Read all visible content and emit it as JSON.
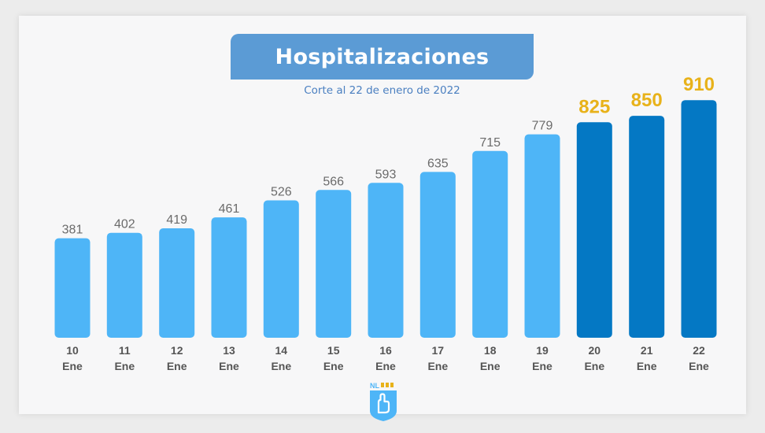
{
  "chart_data": {
    "type": "bar",
    "title": "Hospitalizaciones",
    "subtitle": "Corte al 22 de enero de 2022",
    "xlabel": "",
    "ylabel": "",
    "categories": [
      {
        "day": "10",
        "month": "Ene"
      },
      {
        "day": "11",
        "month": "Ene"
      },
      {
        "day": "12",
        "month": "Ene"
      },
      {
        "day": "13",
        "month": "Ene"
      },
      {
        "day": "14",
        "month": "Ene"
      },
      {
        "day": "15",
        "month": "Ene"
      },
      {
        "day": "16",
        "month": "Ene"
      },
      {
        "day": "17",
        "month": "Ene"
      },
      {
        "day": "18",
        "month": "Ene"
      },
      {
        "day": "19",
        "month": "Ene"
      },
      {
        "day": "20",
        "month": "Ene"
      },
      {
        "day": "21",
        "month": "Ene"
      },
      {
        "day": "22",
        "month": "Ene"
      }
    ],
    "values": [
      381,
      402,
      419,
      461,
      526,
      566,
      593,
      635,
      715,
      779,
      825,
      850,
      910
    ],
    "highlighted": [
      false,
      false,
      false,
      false,
      false,
      false,
      false,
      false,
      false,
      false,
      true,
      true,
      true
    ],
    "grid": false,
    "legend": "none"
  },
  "colors": {
    "bar": "#4eb5f7",
    "bar_highlight": "#0478c4",
    "label": "#6b6b6b",
    "label_highlight": "#e8b21a",
    "axis_label": "#555555",
    "title_banner": "#5b9bd5"
  },
  "logo": {
    "text": "NL",
    "icon": "nl-hand-shield-icon"
  }
}
